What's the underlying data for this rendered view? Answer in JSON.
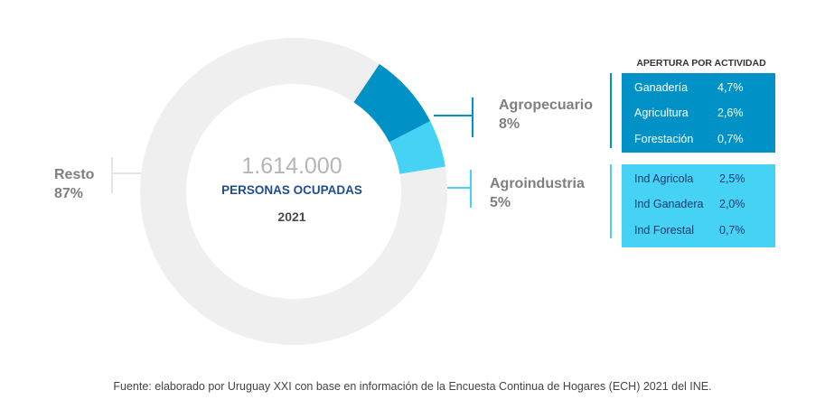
{
  "chart_data": {
    "type": "donut",
    "segments": [
      {
        "name": "Resto",
        "value": 87,
        "label": "87%",
        "color": "#efefef"
      },
      {
        "name": "Agropecuario",
        "value": 8,
        "label": "8%",
        "color": "#0092c7"
      },
      {
        "name": "Agroindustria",
        "value": 5,
        "label": "5%",
        "color": "#45d2f5"
      }
    ],
    "center": {
      "total": "1.614.000",
      "label": "PERSONAS OCUPADAS",
      "year": "2021"
    },
    "breakdown": {
      "title": "APERTURA POR ACTIVIDAD",
      "agropecuario": [
        {
          "name": "Ganadería",
          "value": "4,7%"
        },
        {
          "name": "Agricultura",
          "value": "2,6%"
        },
        {
          "name": "Forestación",
          "value": "0,7%"
        }
      ],
      "agroindustria": [
        {
          "name": "Ind Agricola",
          "value": "2,5%"
        },
        {
          "name": "Ind Ganadera",
          "value": "2,0%"
        },
        {
          "name": "Ind Forestal",
          "value": "0,7%"
        }
      ]
    },
    "colors": {
      "resto": "#efefef",
      "agropecuario": "#0092c7",
      "agroindustria": "#45d2f5",
      "label_text": "#7f7f7f",
      "center_label": "#1f4e8c"
    }
  },
  "source": "Fuente: elaborado por Uruguay XXI con base en información de la Encuesta Continua de Hogares (ECH) 2021 del INE."
}
